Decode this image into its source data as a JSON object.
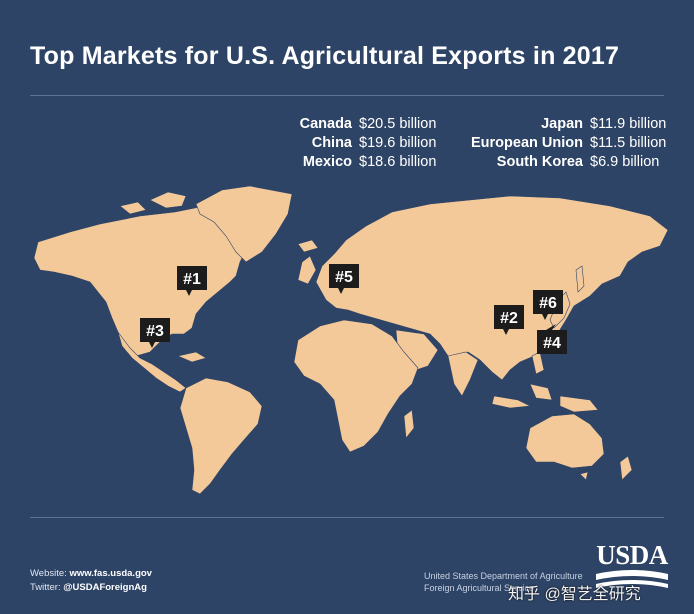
{
  "title": "Top Markets for U.S. Agricultural Exports in 2017",
  "markets_left": [
    {
      "name": "Canada",
      "value": "$20.5 billion"
    },
    {
      "name": "China",
      "value": "$19.6 billion"
    },
    {
      "name": "Mexico",
      "value": "$18.6 billion"
    }
  ],
  "markets_right": [
    {
      "name": "Japan",
      "value": "$11.9 billion"
    },
    {
      "name": "European Union",
      "value": "$11.5 billion"
    },
    {
      "name": "South Korea",
      "value": "$6.9 billion"
    }
  ],
  "markers": [
    "#1",
    "#2",
    "#3",
    "#4",
    "#5",
    "#6"
  ],
  "footer": {
    "website_label": "Website:",
    "website": "www.fas.usda.gov",
    "twitter_label": "Twitter:",
    "twitter": "@USDAForeignAg",
    "agency_line1": "United States Department of Agriculture",
    "agency_line2": "Foreign Agricultural Service"
  },
  "logo": "USDA",
  "watermark": "知乎 @智艺全研究",
  "colors": {
    "background": "#2e4466",
    "land": "#f4c99a",
    "marker": "#1c1c1c",
    "text": "#ffffff"
  }
}
